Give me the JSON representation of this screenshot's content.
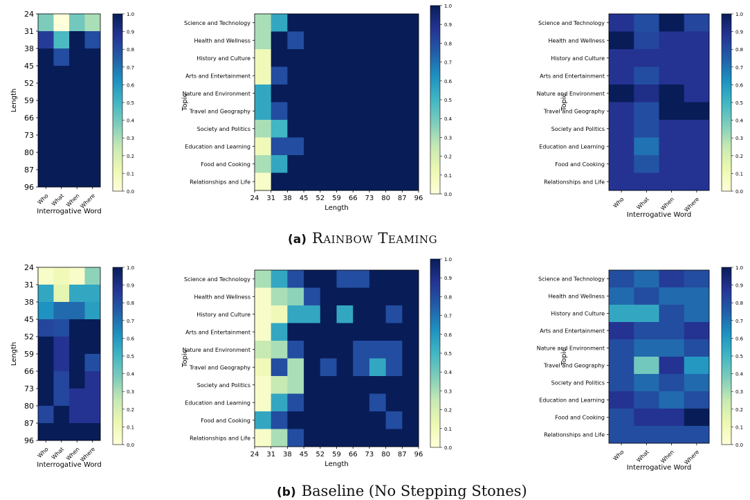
{
  "colorscale": [
    "#ffffd9",
    "#edf8b1",
    "#c7e9b4",
    "#7fcdbb",
    "#41b6c4",
    "#1d91c0",
    "#225ea8",
    "#253494",
    "#081d58"
  ],
  "labels": {
    "interrogative_axis": "Interrogative Word",
    "length_axis": "Length",
    "topic_axis": "Topic"
  },
  "captions": {
    "a_label": "(a)",
    "a_text": "Rainbow Teaming",
    "b_label": "(b)",
    "b_text": "Baseline (No Stepping Stones)"
  },
  "chart_data": [
    {
      "panel": "a-left",
      "type": "heatmap",
      "x": [
        "Who",
        "What",
        "When",
        "Where"
      ],
      "y": [
        "24",
        "31",
        "38",
        "45",
        "52",
        "59",
        "66",
        "73",
        "80",
        "87",
        "96"
      ],
      "xlabel": "Interrogative Word",
      "ylabel": "Length",
      "colorbar_ticks": [
        "0.0",
        "0.1",
        "0.2",
        "0.3",
        "0.4",
        "0.5",
        "0.6",
        "0.7",
        "0.8",
        "0.9",
        "1.0"
      ],
      "vmin": 0,
      "vmax": 1,
      "values": [
        [
          0.38,
          0.0,
          0.4,
          0.3
        ],
        [
          0.85,
          0.48,
          1.0,
          0.8
        ],
        [
          1.0,
          0.8,
          1.0,
          1.0
        ],
        [
          1.0,
          1.0,
          1.0,
          1.0
        ],
        [
          1.0,
          1.0,
          1.0,
          1.0
        ],
        [
          1.0,
          1.0,
          1.0,
          1.0
        ],
        [
          1.0,
          1.0,
          1.0,
          1.0
        ],
        [
          1.0,
          1.0,
          1.0,
          1.0
        ],
        [
          1.0,
          1.0,
          1.0,
          1.0
        ],
        [
          1.0,
          1.0,
          1.0,
          1.0
        ]
      ]
    },
    {
      "panel": "a-mid",
      "type": "heatmap",
      "x": [
        "24",
        "31",
        "38",
        "45",
        "52",
        "59",
        "66",
        "73",
        "80",
        "87",
        "96"
      ],
      "y": [
        "Science and Technology",
        "Health and Wellness",
        "History and Culture",
        "Arts and Entertainment",
        "Nature and Environment",
        "Travel and Geography",
        "Society and Politics",
        "Education and Learning",
        "Food and Cooking",
        "Relationships and Life"
      ],
      "xlabel": "Length",
      "ylabel": "Topic",
      "colorbar_ticks": [
        "0.0",
        "0.1",
        "0.2",
        "0.3",
        "0.4",
        "0.5",
        "0.6",
        "0.7",
        "0.8",
        "0.9",
        "1.0"
      ],
      "vmin": 0,
      "vmax": 1,
      "values": [
        [
          0.3,
          0.55,
          1,
          1,
          1,
          1,
          1,
          1,
          1,
          1
        ],
        [
          0.3,
          1,
          0.8,
          1,
          1,
          1,
          1,
          1,
          1,
          1
        ],
        [
          0.1,
          1,
          1,
          1,
          1,
          1,
          1,
          1,
          1,
          1
        ],
        [
          0.1,
          0.8,
          1,
          1,
          1,
          1,
          1,
          1,
          1,
          1
        ],
        [
          0.55,
          1,
          1,
          1,
          1,
          1,
          1,
          1,
          1,
          1
        ],
        [
          0.55,
          0.8,
          1,
          1,
          1,
          1,
          1,
          1,
          1,
          1
        ],
        [
          0.3,
          0.5,
          1,
          1,
          1,
          1,
          1,
          1,
          1,
          1
        ],
        [
          0.1,
          0.8,
          0.8,
          1,
          1,
          1,
          1,
          1,
          1,
          1
        ],
        [
          0.3,
          0.55,
          1,
          1,
          1,
          1,
          1,
          1,
          1,
          1
        ],
        [
          0.05,
          1,
          1,
          1,
          1,
          1,
          1,
          1,
          1,
          1
        ]
      ]
    },
    {
      "panel": "a-right",
      "type": "heatmap",
      "x": [
        "Who",
        "What",
        "When",
        "Where"
      ],
      "y": [
        "Science and Technology",
        "Health and Wellness",
        "History and Culture",
        "Arts and Entertainment",
        "Nature and Environment",
        "Travel and Geography",
        "Society and Politics",
        "Education and Learning",
        "Food and Cooking",
        "Relationships and Life"
      ],
      "xlabel": "Interrogative Word",
      "ylabel": "Topic",
      "colorbar_ticks": [
        "0.0",
        "0.1",
        "0.2",
        "0.3",
        "0.4",
        "0.5",
        "0.6",
        "0.7",
        "0.8",
        "0.9",
        "1.0"
      ],
      "vmin": 0,
      "vmax": 1,
      "values": [
        [
          0.88,
          0.8,
          1.0,
          0.82
        ],
        [
          1.0,
          0.82,
          0.88,
          0.88
        ],
        [
          0.88,
          0.88,
          0.88,
          0.88
        ],
        [
          0.88,
          0.8,
          0.88,
          0.88
        ],
        [
          1.0,
          0.9,
          1.0,
          0.88
        ],
        [
          0.88,
          0.8,
          1.0,
          1.0
        ],
        [
          0.88,
          0.8,
          0.88,
          0.88
        ],
        [
          0.88,
          0.7,
          0.88,
          0.88
        ],
        [
          0.88,
          0.78,
          0.88,
          0.88
        ],
        [
          0.88,
          0.88,
          0.88,
          0.88
        ]
      ]
    },
    {
      "panel": "b-left",
      "type": "heatmap",
      "x": [
        "Who",
        "What",
        "When",
        "Where"
      ],
      "y": [
        "24",
        "31",
        "38",
        "45",
        "52",
        "59",
        "66",
        "73",
        "80",
        "87",
        "96"
      ],
      "xlabel": "Interrogative Word",
      "ylabel": "Length",
      "colorbar_ticks": [
        "0.0",
        "0.1",
        "0.2",
        "0.3",
        "0.4",
        "0.5",
        "0.6",
        "0.7",
        "0.8",
        "0.9",
        "1.0"
      ],
      "vmin": 0,
      "vmax": 1,
      "values": [
        [
          0.05,
          0.1,
          0.05,
          0.35
        ],
        [
          0.55,
          0.15,
          0.55,
          0.55
        ],
        [
          0.62,
          0.72,
          0.72,
          0.58
        ],
        [
          0.82,
          0.8,
          1.0,
          1.0
        ],
        [
          1.0,
          0.88,
          1.0,
          1.0
        ],
        [
          1.0,
          0.88,
          1.0,
          0.8
        ],
        [
          1.0,
          0.82,
          1.0,
          0.88
        ],
        [
          1.0,
          0.82,
          0.88,
          0.88
        ],
        [
          0.82,
          1.0,
          0.88,
          0.88
        ],
        [
          1.0,
          1.0,
          1.0,
          1.0
        ]
      ]
    },
    {
      "panel": "b-mid",
      "type": "heatmap",
      "x": [
        "24",
        "31",
        "38",
        "45",
        "52",
        "59",
        "66",
        "73",
        "80",
        "87",
        "96"
      ],
      "y": [
        "Science and Technology",
        "Health and Wellness",
        "History and Culture",
        "Arts and Entertainment",
        "Nature and Environment",
        "Travel and Geography",
        "Society and Politics",
        "Education and Learning",
        "Food and Cooking",
        "Relationships and Life"
      ],
      "xlabel": "Length",
      "ylabel": "Topic",
      "colorbar_ticks": [
        "0.0",
        "0.1",
        "0.2",
        "0.3",
        "0.4",
        "0.5",
        "0.6",
        "0.7",
        "0.8",
        "0.9",
        "1.0"
      ],
      "vmin": 0,
      "vmax": 1,
      "values": [
        [
          0.3,
          0.55,
          0.8,
          1,
          1,
          0.8,
          0.8,
          1,
          1,
          1
        ],
        [
          0.05,
          0.3,
          0.35,
          0.8,
          1,
          1,
          1,
          1,
          1,
          1
        ],
        [
          0.05,
          0.1,
          0.55,
          0.55,
          1,
          0.55,
          1,
          1,
          0.8,
          1
        ],
        [
          0.05,
          0.55,
          1,
          1,
          1,
          1,
          1,
          1,
          1,
          1
        ],
        [
          0.25,
          0.3,
          0.8,
          1,
          1,
          1,
          0.8,
          0.8,
          0.8,
          1
        ],
        [
          0.1,
          0.8,
          0.3,
          1,
          0.8,
          1,
          0.8,
          0.55,
          0.8,
          1
        ],
        [
          0.05,
          0.25,
          0.3,
          1,
          1,
          1,
          1,
          1,
          1,
          1
        ],
        [
          0.05,
          0.55,
          0.8,
          1,
          1,
          1,
          1,
          0.8,
          1,
          1
        ],
        [
          0.55,
          0.8,
          1,
          1,
          1,
          1,
          1,
          1,
          0.8,
          1
        ],
        [
          0.05,
          0.3,
          0.8,
          1,
          1,
          1,
          1,
          1,
          1,
          1
        ]
      ]
    },
    {
      "panel": "b-right",
      "type": "heatmap",
      "x": [
        "Who",
        "What",
        "When",
        "Where"
      ],
      "y": [
        "Science and Technology",
        "Health and Wellness",
        "History and Culture",
        "Arts and Entertainment",
        "Nature and Environment",
        "Travel and Geography",
        "Society and Politics",
        "Education and Learning",
        "Food and Cooking",
        "Relationships and Life"
      ],
      "xlabel": "Interrogative Word",
      "ylabel": "Topic",
      "colorbar_ticks": [
        "0.0",
        "0.1",
        "0.2",
        "0.3",
        "0.4",
        "0.5",
        "0.6",
        "0.7",
        "0.8",
        "0.9",
        "1.0"
      ],
      "vmin": 0,
      "vmax": 1,
      "values": [
        [
          0.8,
          0.72,
          0.85,
          0.8
        ],
        [
          0.72,
          0.8,
          0.72,
          0.72
        ],
        [
          0.55,
          0.55,
          0.8,
          0.72
        ],
        [
          0.88,
          0.8,
          0.8,
          0.88
        ],
        [
          0.8,
          0.72,
          0.72,
          0.8
        ],
        [
          0.8,
          0.4,
          0.88,
          0.6
        ],
        [
          0.8,
          0.72,
          0.8,
          0.72
        ],
        [
          0.88,
          0.8,
          0.72,
          0.8
        ],
        [
          0.8,
          0.88,
          0.88,
          1.0
        ],
        [
          0.8,
          0.8,
          0.8,
          0.8
        ]
      ]
    }
  ]
}
